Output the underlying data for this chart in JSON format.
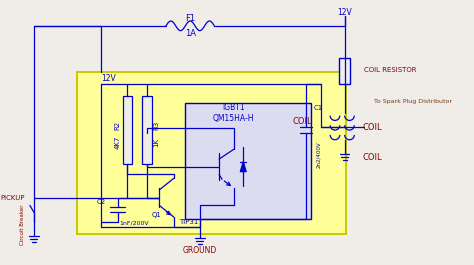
{
  "bg_color": "#f0ede8",
  "blue": "#0000cc",
  "dark_red": "#8b0000",
  "brown": "#7b3a10",
  "yellow_box": "#ffff99",
  "yellow_box_border": "#c8c800",
  "inner_box": "#dcdcf0",
  "inner_box_border": "#0000aa",
  "labels": {
    "F1": "F1",
    "1A": "1A",
    "12V_left": "12V",
    "12V_right": "12V",
    "COIL_RESISTOR": "COIL RESISTOR",
    "To_Spark": "To Spark Plug Distributor",
    "COIL_label_right": "COIL",
    "COIL_label_bottom": "COIL",
    "IGBT1": "IGBT1",
    "QM15HA": "QM15HA-H",
    "R2": "R2",
    "4K7": "4K7",
    "R3": "R3",
    "1K": "1K",
    "Q1": "Q1",
    "TIP31": "TIP31",
    "C2": "C2",
    "1nF200V": "1nF/200V",
    "C1": "C1",
    "2n2_400V": "2n2/400V",
    "PICKUP": "PICKUP",
    "Circuit_Breaker": "Circuit Breaker",
    "GROUND": "GROUND"
  }
}
